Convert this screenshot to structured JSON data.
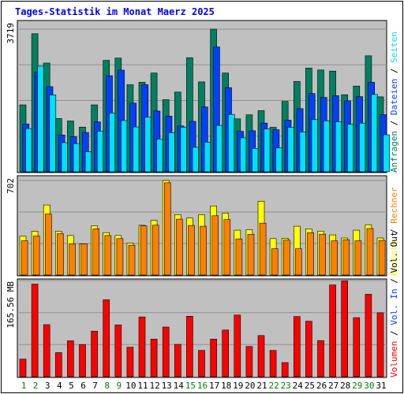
{
  "title": "Tages-Statistik im Monat Maerz 2025",
  "colors": {
    "title": "#0000ff",
    "panel_bg": "#c0c0c0",
    "grid": "#909090",
    "anfragen": "#008060",
    "dateien": "#0040ff",
    "seiten": "#00e0ff",
    "besuche": "#ffff00",
    "rechner": "#ff8000",
    "volumen": "#ff0000",
    "weekday": "#000000",
    "weekend": "#008000",
    "vol_out": "#000000"
  },
  "chart_data": [
    {
      "type": "bar",
      "panel": "top",
      "scale_label": "3719",
      "right_labels": [
        {
          "text": "Anfragen",
          "color": "anfragen"
        },
        {
          "text": " / ",
          "color": "weekday"
        },
        {
          "text": "Dateien",
          "color": "dateien"
        },
        {
          "text": " / ",
          "color": "weekday"
        },
        {
          "text": "Seiten",
          "color": "seiten"
        }
      ],
      "ylim": [
        0,
        3719
      ],
      "series": [
        {
          "name": "Anfragen",
          "values": [
            1745,
            3600,
            2835,
            1390,
            1325,
            1165,
            1745,
            2905,
            2964,
            2270,
            2335,
            2575,
            1880,
            2080,
            2975,
            2345,
            3719,
            2575,
            1380,
            1485,
            1595,
            1160,
            1835,
            2355,
            2705,
            2655,
            2625,
            2010,
            2235,
            3025,
            1955
          ]
        },
        {
          "name": "Dateien",
          "values": [
            1245,
            2595,
            2220,
            960,
            915,
            1025,
            1300,
            2505,
            2650,
            1790,
            2270,
            1585,
            1450,
            1195,
            1315,
            1690,
            3255,
            2195,
            1055,
            1070,
            1270,
            1095,
            1345,
            1645,
            2040,
            1940,
            1985,
            1850,
            1960,
            2335,
            1490
          ]
        },
        {
          "name": "Seiten",
          "values": [
            1125,
            2755,
            2005,
            760,
            735,
            525,
            1060,
            1535,
            1335,
            1170,
            1425,
            850,
            1020,
            1165,
            640,
            770,
            1210,
            1495,
            885,
            610,
            1115,
            625,
            1160,
            1040,
            1360,
            1330,
            1305,
            1240,
            1270,
            2015,
            965
          ]
        }
      ]
    },
    {
      "type": "bar",
      "panel": "middle",
      "scale_label": "702",
      "right_labels": [
        {
          "text": "Besuche",
          "color": "besuche"
        },
        {
          "text": " / ",
          "color": "weekday"
        },
        {
          "text": "Rechner",
          "color": "rechner"
        }
      ],
      "ylim": [
        0,
        702
      ],
      "series": [
        {
          "name": "Besuche",
          "values": [
            288,
            326,
            520,
            326,
            293,
            230,
            365,
            315,
            293,
            238,
            369,
            406,
            702,
            448,
            423,
            448,
            513,
            459,
            333,
            336,
            548,
            270,
            273,
            362,
            342,
            326,
            298,
            275,
            333,
            373,
            275
          ]
        },
        {
          "name": "Rechner",
          "values": [
            254,
            289,
            453,
            307,
            232,
            230,
            342,
            293,
            270,
            222,
            365,
            370,
            685,
            415,
            368,
            362,
            440,
            412,
            268,
            302,
            385,
            195,
            259,
            195,
            314,
            303,
            254,
            262,
            254,
            345,
            257
          ]
        }
      ]
    },
    {
      "type": "bar",
      "panel": "bottom",
      "scale_label": "165.56 MB",
      "right_labels": [
        {
          "text": "Volumen",
          "color": "volumen"
        },
        {
          "text": " / ",
          "color": "weekday"
        },
        {
          "text": "Vol. In",
          "color": "dateien"
        },
        {
          "text": " / ",
          "color": "weekday"
        },
        {
          "text": "Vol. Out",
          "color": "vol_out"
        }
      ],
      "ylim": [
        0,
        165.56
      ],
      "series": [
        {
          "name": "Volumen",
          "values": [
            30.2,
            159.4,
            89.5,
            41.4,
            61.8,
            55.4,
            78.4,
            132.4,
            89.1,
            50.7,
            102.8,
            64.7,
            85.5,
            55.6,
            104.1,
            45.2,
            64.7,
            80.4,
            106.1,
            52.0,
            70.9,
            45.2,
            24.3,
            103.5,
            95.6,
            62.2,
            157.9,
            165.0,
            101.6,
            141.9,
            110.0
          ]
        }
      ]
    }
  ],
  "x_axis": {
    "labels": [
      "1",
      "2",
      "3",
      "4",
      "5",
      "6",
      "7",
      "8",
      "9",
      "10",
      "11",
      "12",
      "13",
      "14",
      "15",
      "16",
      "17",
      "18",
      "19",
      "20",
      "21",
      "22",
      "23",
      "24",
      "25",
      "26",
      "27",
      "28",
      "29",
      "30",
      "31"
    ],
    "weekend": [
      1,
      2,
      8,
      9,
      15,
      16,
      22,
      23,
      29,
      30
    ]
  }
}
